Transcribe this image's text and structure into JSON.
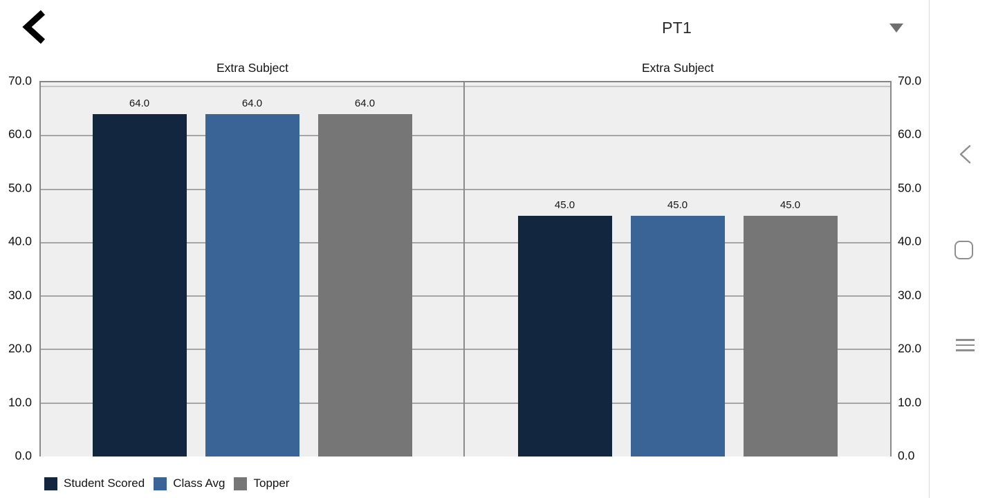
{
  "header": {
    "back_icon": "chevron-left",
    "dropdown_value": "PT1",
    "dropdown_arrow_icon": "caret-down"
  },
  "colors": {
    "student_scored": "#122640",
    "class_avg": "#3A6496",
    "topper": "#767676",
    "plot_background": "#EFEFEF",
    "gridline": "#A5A5A5",
    "plot_border": "#8A8A8A",
    "nav_icon": "#8E8E8E"
  },
  "chart_data": [
    {
      "type": "bar",
      "title": "Extra Subject",
      "categories": [
        "Student Scored",
        "Class Avg",
        "Topper"
      ],
      "series": [
        {
          "name": "Student Scored",
          "value": 64.0,
          "label": "64.0",
          "color": "#122640"
        },
        {
          "name": "Class Avg",
          "value": 64.0,
          "label": "64.0",
          "color": "#3A6496"
        },
        {
          "name": "Topper",
          "value": 64.0,
          "label": "64.0",
          "color": "#767676"
        }
      ],
      "ylim": [
        0,
        70
      ],
      "ytick_step": 10,
      "yticks": [
        "70.0",
        "60.0",
        "50.0",
        "40.0",
        "30.0",
        "20.0",
        "10.0",
        "0.0"
      ],
      "grid": true,
      "legend_position": "bottom-left"
    },
    {
      "type": "bar",
      "title": "Extra Subject",
      "categories": [
        "Student Scored",
        "Class Avg",
        "Topper"
      ],
      "series": [
        {
          "name": "Student Scored",
          "value": 45.0,
          "label": "45.0",
          "color": "#122640"
        },
        {
          "name": "Class Avg",
          "value": 45.0,
          "label": "45.0",
          "color": "#3A6496"
        },
        {
          "name": "Topper",
          "value": 45.0,
          "label": "45.0",
          "color": "#767676"
        }
      ],
      "ylim": [
        0,
        70
      ],
      "ytick_step": 10,
      "yticks": [
        "70.0",
        "60.0",
        "50.0",
        "40.0",
        "30.0",
        "20.0",
        "10.0",
        "0.0"
      ],
      "grid": true,
      "legend_position": "none"
    }
  ],
  "legend": {
    "items": [
      {
        "label": "Student Scored",
        "color": "#122640"
      },
      {
        "label": "Class Avg",
        "color": "#3A6496"
      },
      {
        "label": "Topper",
        "color": "#767676"
      }
    ]
  },
  "android_nav": {
    "back_icon": "back-chevron",
    "home_icon": "home-square",
    "recents_icon": "recents-lines"
  }
}
